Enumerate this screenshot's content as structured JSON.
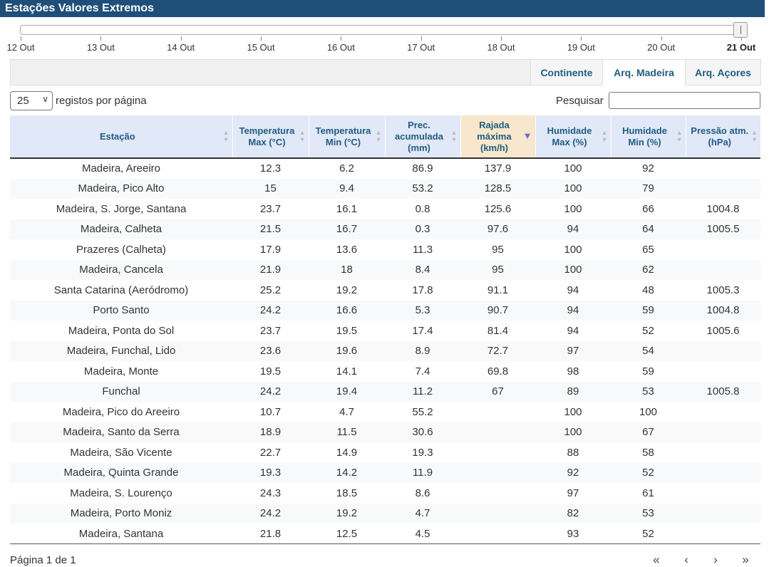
{
  "title": "Estações Valores Extremos",
  "timeline": {
    "ticks": [
      "12 Out",
      "13 Out",
      "14 Out",
      "15 Out",
      "16 Out",
      "17 Out",
      "18 Out",
      "19 Out",
      "20 Out",
      "21 Out"
    ],
    "selected": "21 Out"
  },
  "tabs": [
    {
      "label": "Continente",
      "active": false
    },
    {
      "label": "Arq. Madeira",
      "active": true
    },
    {
      "label": "Arq. Açores",
      "active": false
    }
  ],
  "controls": {
    "page_size": "25",
    "page_size_label": "registos por página",
    "search_label": "Pesquisar",
    "search_value": ""
  },
  "table": {
    "columns": [
      "Estação",
      "Temperatura Max (°C)",
      "Temperatura Min (°C)",
      "Prec. acumulada (mm)",
      "Rajada máxima (km/h)",
      "Humidade Max (%)",
      "Humidade Min (%)",
      "Pressão atm. (hPa)"
    ],
    "sorted_column": 4,
    "sort_direction": "desc",
    "rows": [
      [
        "Madeira, Areeiro",
        "12.3",
        "6.2",
        "86.9",
        "137.9",
        "100",
        "92",
        ""
      ],
      [
        "Madeira, Pico Alto",
        "15",
        "9.4",
        "53.2",
        "128.5",
        "100",
        "79",
        ""
      ],
      [
        "Madeira, S. Jorge, Santana",
        "23.7",
        "16.1",
        "0.8",
        "125.6",
        "100",
        "66",
        "1004.8"
      ],
      [
        "Madeira, Calheta",
        "21.5",
        "16.7",
        "0.3",
        "97.6",
        "94",
        "64",
        "1005.5"
      ],
      [
        "Prazeres (Calheta)",
        "17.9",
        "13.6",
        "11.3",
        "95",
        "100",
        "65",
        ""
      ],
      [
        "Madeira, Cancela",
        "21.9",
        "18",
        "8.4",
        "95",
        "100",
        "62",
        ""
      ],
      [
        "Santa Catarina (Aeródromo)",
        "25.2",
        "19.2",
        "17.8",
        "91.1",
        "94",
        "48",
        "1005.3"
      ],
      [
        "Porto Santo",
        "24.2",
        "16.6",
        "5.3",
        "90.7",
        "94",
        "59",
        "1004.8"
      ],
      [
        "Madeira, Ponta do Sol",
        "23.7",
        "19.5",
        "17.4",
        "81.4",
        "94",
        "52",
        "1005.6"
      ],
      [
        "Madeira, Funchal, Lido",
        "23.6",
        "19.6",
        "8.9",
        "72.7",
        "97",
        "54",
        ""
      ],
      [
        "Madeira, Monte",
        "19.5",
        "14.1",
        "7.4",
        "69.8",
        "98",
        "59",
        ""
      ],
      [
        "Funchal",
        "24.2",
        "19.4",
        "11.2",
        "67",
        "89",
        "53",
        "1005.8"
      ],
      [
        "Madeira, Pico do Areeiro",
        "10.7",
        "4.7",
        "55.2",
        "",
        "100",
        "100",
        ""
      ],
      [
        "Madeira, Santo da Serra",
        "18.9",
        "11.5",
        "30.6",
        "",
        "100",
        "67",
        ""
      ],
      [
        "Madeira, São Vicente",
        "22.7",
        "14.9",
        "19.3",
        "",
        "88",
        "58",
        ""
      ],
      [
        "Madeira, Quinta Grande",
        "19.3",
        "14.2",
        "11.9",
        "",
        "92",
        "52",
        ""
      ],
      [
        "Madeira, S. Lourenço",
        "24.3",
        "18.5",
        "8.6",
        "",
        "97",
        "61",
        ""
      ],
      [
        "Madeira, Porto Moniz",
        "24.2",
        "19.2",
        "4.7",
        "",
        "82",
        "53",
        ""
      ],
      [
        "Madeira, Santana",
        "21.8",
        "12.5",
        "4.5",
        "",
        "93",
        "52",
        ""
      ]
    ]
  },
  "footer": {
    "page_info": "Página 1 de 1",
    "first_icon": "«",
    "prev_icon": "‹",
    "next_icon": "›",
    "last_icon": "»"
  }
}
